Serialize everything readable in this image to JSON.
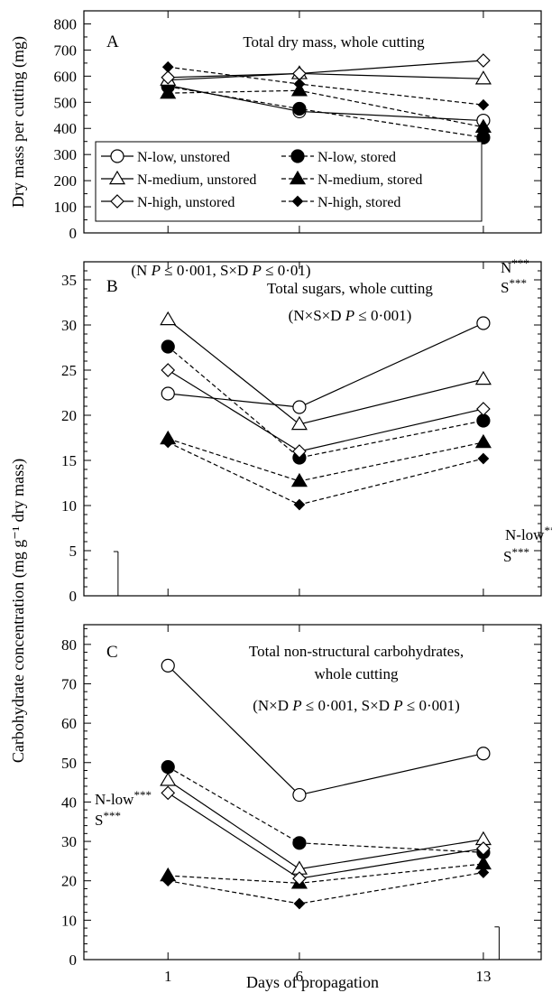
{
  "figure": {
    "xlabel": "Days of propagation",
    "legend": {
      "position": "inside lower-left of panel A",
      "entries": [
        "N-low, unstored",
        "N-low, stored",
        "N-medium, unstored",
        "N-medium, stored",
        "N-high, unstored",
        "N-high, stored"
      ]
    }
  },
  "chart_data": [
    {
      "type": "line",
      "panel": "A",
      "title": "Total dry mass, whole cutting",
      "ylabel": "Dry mass per cutting (mg)",
      "xlabel": "",
      "x": [
        1,
        6,
        13
      ],
      "xticks": [
        "1",
        "6",
        "13"
      ],
      "ylim": [
        0,
        850
      ],
      "yticks": [
        "0",
        "100",
        "200",
        "300",
        "400",
        "500",
        "600",
        "700",
        "800"
      ],
      "annotation": "(N P ≤ 0·001, S×D P ≤ 0·01)",
      "significance": [
        "N***",
        "S***"
      ],
      "series": [
        {
          "name": "N-low, unstored",
          "marker": "circle-open",
          "line": "solid",
          "values": [
            565,
            465,
            430
          ]
        },
        {
          "name": "N-low, stored",
          "marker": "circle-filled",
          "line": "dashed",
          "values": [
            560,
            475,
            365
          ]
        },
        {
          "name": "N-medium, unstored",
          "marker": "triangle-open",
          "line": "solid",
          "values": [
            585,
            610,
            590
          ]
        },
        {
          "name": "N-medium, stored",
          "marker": "triangle-filled",
          "line": "dashed",
          "values": [
            535,
            545,
            405
          ]
        },
        {
          "name": "N-high, unstored",
          "marker": "diamond-open",
          "line": "solid",
          "values": [
            595,
            610,
            660
          ]
        },
        {
          "name": "N-high, stored",
          "marker": "diamond-filled",
          "line": "dashed",
          "values": [
            635,
            570,
            490
          ]
        }
      ]
    },
    {
      "type": "line",
      "panel": "B",
      "title": "Total sugars, whole cutting",
      "ylabel": "",
      "xlabel": "",
      "x": [
        1,
        6,
        13
      ],
      "xticks": [
        "1",
        "6",
        "13"
      ],
      "ylim": [
        0,
        37
      ],
      "yticks": [
        "0",
        "5",
        "10",
        "15",
        "20",
        "25",
        "30",
        "35"
      ],
      "annotation": "(N×S×D P ≤ 0·001)",
      "significance": [
        "N-low**",
        "S***"
      ],
      "error_bar": {
        "day": -0.9,
        "value": 4.9
      },
      "series": [
        {
          "name": "N-low, unstored",
          "marker": "circle-open",
          "line": "solid",
          "values": [
            22.4,
            20.9,
            30.2
          ]
        },
        {
          "name": "N-low, stored",
          "marker": "circle-filled",
          "line": "dashed",
          "values": [
            27.6,
            15.3,
            19.4
          ]
        },
        {
          "name": "N-medium, unstored",
          "marker": "triangle-open",
          "line": "solid",
          "values": [
            30.6,
            19.0,
            24.0
          ]
        },
        {
          "name": "N-medium, stored",
          "marker": "triangle-filled",
          "line": "dashed",
          "values": [
            17.4,
            12.7,
            17.0
          ]
        },
        {
          "name": "N-high, unstored",
          "marker": "diamond-open",
          "line": "solid",
          "values": [
            25.0,
            16.0,
            20.7
          ]
        },
        {
          "name": "N-high, stored",
          "marker": "diamond-filled",
          "line": "dashed",
          "values": [
            17.0,
            10.1,
            15.2
          ]
        }
      ]
    },
    {
      "type": "line",
      "panel": "C",
      "title": "Total non-structural carbohydrates,",
      "title2": "whole cutting",
      "ylabel": "",
      "xlabel": "Days of propagation",
      "x": [
        1,
        6,
        13
      ],
      "xticks": [
        "1",
        "6",
        "13"
      ],
      "ylim": [
        0,
        85
      ],
      "yticks": [
        "0",
        "10",
        "20",
        "30",
        "40",
        "50",
        "60",
        "70",
        "80"
      ],
      "annotation": "(N×D P ≤ 0·001, S×D P ≤ 0·001)",
      "significance": [
        "N-low***",
        "S***"
      ],
      "error_bar": {
        "day": 13.6,
        "value": 8.3
      },
      "series": [
        {
          "name": "N-low, unstored",
          "marker": "circle-open",
          "line": "solid",
          "values": [
            74.6,
            41.8,
            52.3
          ]
        },
        {
          "name": "N-low, stored",
          "marker": "circle-filled",
          "line": "dashed",
          "values": [
            48.9,
            29.6,
            27.2
          ]
        },
        {
          "name": "N-medium, unstored",
          "marker": "triangle-open",
          "line": "solid",
          "values": [
            45.5,
            23.0,
            30.5
          ]
        },
        {
          "name": "N-medium, stored",
          "marker": "triangle-filled",
          "line": "dashed",
          "values": [
            21.3,
            19.4,
            24.3
          ]
        },
        {
          "name": "N-high, unstored",
          "marker": "diamond-open",
          "line": "solid",
          "values": [
            42.3,
            20.6,
            28.2
          ]
        },
        {
          "name": "N-high, stored",
          "marker": "diamond-filled",
          "line": "dashed",
          "values": [
            20.0,
            14.2,
            22.1
          ]
        }
      ]
    }
  ],
  "shared_ylabel": "Carbohydrate concentration (mg g⁻¹ dry mass)"
}
